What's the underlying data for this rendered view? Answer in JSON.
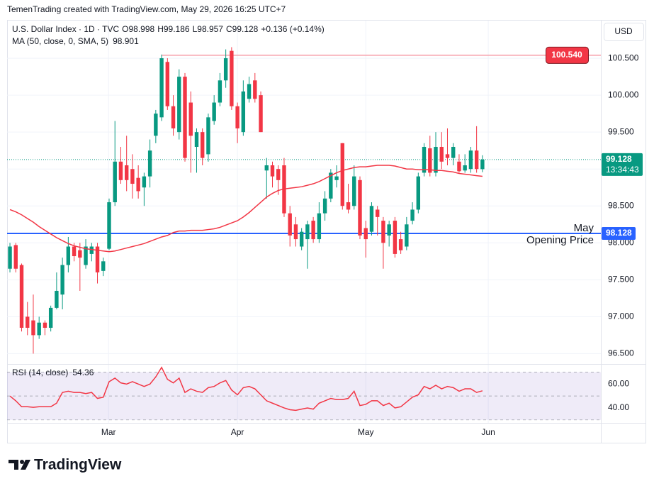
{
  "header": {
    "attribution": "TemenTrading created with TradingView.com, May 29, 2026 16:25 UTC+7",
    "currency_button": "USD",
    "brand": "TradingView"
  },
  "chart_data": [
    {
      "type": "candlestick",
      "title": "U.S. Dollar Index · 1D · TVC",
      "ohlc_letters": [
        "O",
        "H",
        "L",
        "C"
      ],
      "change": "+0.136 (+0.14%)",
      "up_color": "#089981",
      "down_color": "#f23645",
      "grid": true,
      "xlim": [
        -0.49,
        101.3
      ],
      "xticks": [
        {
          "value": 16.9,
          "label": "Mar"
        },
        {
          "value": 39.0,
          "label": "Apr"
        },
        {
          "value": 61.0,
          "label": "May"
        },
        {
          "value": 82.0,
          "label": "Jun"
        }
      ],
      "ylim": [
        96.36,
        101.01
      ],
      "yticks": [
        {
          "value": 96.5,
          "label": "96.500"
        },
        {
          "value": 97,
          "label": "97.000"
        },
        {
          "value": 97.5,
          "label": "97.500"
        },
        {
          "value": 98,
          "label": "98.000"
        },
        {
          "value": 98.5,
          "label": "98.500"
        },
        {
          "value": 99,
          "label": "99.000"
        },
        {
          "value": 99.5,
          "label": "99.500"
        },
        {
          "value": 100,
          "label": "100.000"
        },
        {
          "value": 100.5,
          "label": "100.500"
        }
      ],
      "open": [
        97.65,
        97.97,
        97.7,
        97.0,
        96.95,
        96.75,
        96.92,
        96.85,
        97.12,
        97.3,
        97.7,
        97.95,
        97.9,
        97.7,
        97.85,
        97.95,
        97.62,
        97.92,
        98.55,
        99.1,
        99.05,
        99.0,
        98.88,
        98.75,
        98.9,
        99.45,
        99.7,
        100.45,
        99.85,
        99.5,
        100.25,
        99.9,
        99.3,
        99.5,
        99.2,
        99.65,
        99.9,
        100.2,
        100.6,
        99.85,
        99.5,
        99.95,
        100.2,
        100.0,
        98.98,
        99.05,
        99.0,
        99.05,
        98.4,
        98.25,
        97.95,
        98.05,
        98.3,
        98.05,
        98.4,
        98.6,
        98.85,
        99.35,
        98.55,
        98.5,
        98.85,
        98.2,
        98.15,
        98.45,
        98.3,
        98.1,
        98.3,
        98.05,
        97.95,
        98.3,
        98.45,
        98.95,
        99.28,
        98.95,
        99.3,
        99.2,
        99.15,
        99.1,
        98.98,
        99.0,
        99.25,
        98.998
      ],
      "high": [
        98.0,
        98.0,
        97.72,
        97.2,
        97.3,
        97.0,
        96.95,
        97.15,
        97.6,
        97.8,
        98.08,
        98.0,
        98.0,
        98.05,
        98.0,
        98.0,
        97.8,
        98.6,
        99.65,
        99.3,
        99.45,
        99.2,
        99.05,
        98.95,
        99.4,
        99.8,
        100.55,
        100.5,
        100.0,
        100.35,
        100.3,
        100.05,
        99.55,
        99.55,
        99.75,
        100.0,
        100.3,
        100.62,
        100.65,
        99.9,
        100.2,
        100.25,
        100.3,
        100.05,
        99.15,
        99.1,
        99.05,
        99.15,
        98.5,
        98.35,
        98.2,
        98.3,
        98.35,
        98.55,
        98.7,
        99.0,
        99.05,
        99.35,
        98.8,
        99.05,
        98.9,
        98.3,
        98.55,
        98.5,
        98.35,
        98.3,
        98.35,
        98.15,
        98.35,
        98.55,
        98.95,
        99.35,
        99.45,
        99.5,
        99.5,
        99.55,
        99.35,
        99.2,
        99.2,
        99.3,
        99.58,
        99.186
      ],
      "low": [
        97.6,
        97.6,
        96.8,
        96.75,
        96.5,
        96.7,
        96.75,
        96.8,
        97.1,
        97.1,
        97.6,
        97.75,
        97.35,
        97.65,
        97.75,
        97.45,
        97.55,
        97.9,
        98.5,
        98.8,
        98.7,
        98.6,
        98.6,
        98.5,
        98.75,
        99.35,
        99.65,
        99.8,
        99.45,
        99.4,
        99.1,
        98.95,
        98.95,
        99.05,
        99.1,
        99.6,
        99.85,
        100.1,
        99.8,
        99.35,
        99.45,
        99.9,
        99.9,
        99.5,
        98.6,
        98.75,
        98.65,
        98.35,
        97.95,
        97.95,
        97.9,
        97.65,
        98.0,
        98.0,
        98.3,
        98.55,
        98.75,
        98.45,
        98.4,
        98.45,
        98.05,
        97.8,
        98.1,
        98.1,
        97.65,
        97.95,
        97.8,
        97.85,
        97.9,
        98.25,
        98.4,
        98.9,
        98.9,
        98.9,
        99.0,
        99.05,
        99.05,
        98.95,
        98.95,
        98.95,
        98.95,
        98.957
      ],
      "close": [
        97.95,
        97.65,
        96.85,
        96.85,
        96.75,
        96.92,
        96.85,
        97.12,
        97.35,
        97.7,
        97.95,
        97.82,
        97.8,
        97.95,
        97.95,
        97.6,
        97.75,
        98.55,
        99.1,
        98.85,
        98.85,
        98.8,
        98.7,
        98.9,
        99.25,
        99.75,
        100.5,
        99.85,
        99.55,
        100.25,
        99.15,
        99.45,
        99.5,
        99.15,
        99.7,
        99.9,
        100.2,
        100.5,
        99.85,
        99.55,
        100.05,
        100.15,
        99.95,
        99.5,
        99.05,
        98.9,
        98.85,
        98.4,
        98.1,
        98.05,
        98.15,
        98.25,
        98.05,
        98.4,
        98.6,
        98.95,
        98.9,
        98.5,
        98.45,
        98.9,
        98.1,
        98.05,
        98.5,
        98.35,
        98.0,
        98.25,
        97.85,
        97.9,
        98.25,
        98.45,
        98.9,
        99.3,
        98.95,
        99.3,
        99.1,
        99.15,
        99.3,
        98.97,
        99.05,
        99.25,
        99.0,
        99.128
      ],
      "countdown": "13:34:43",
      "series": [
        {
          "name": "MA (50, close, 0, SMA, 5)",
          "color": "#f23645",
          "values": [
            98.45,
            98.42,
            98.38,
            98.33,
            98.28,
            98.22,
            98.17,
            98.12,
            98.07,
            98.03,
            97.99,
            97.96,
            97.94,
            97.92,
            97.91,
            97.9,
            97.89,
            97.88,
            97.89,
            97.91,
            97.93,
            97.95,
            97.97,
            97.99,
            98.02,
            98.05,
            98.08,
            98.1,
            98.14,
            98.16,
            98.16,
            98.17,
            98.17,
            98.17,
            98.18,
            98.19,
            98.21,
            98.24,
            98.27,
            98.3,
            98.35,
            98.41,
            98.48,
            98.55,
            98.62,
            98.67,
            98.71,
            98.73,
            98.74,
            98.75,
            98.76,
            98.78,
            98.8,
            98.83,
            98.87,
            98.91,
            98.95,
            98.98,
            99.0,
            99.02,
            99.03,
            99.03,
            99.04,
            99.05,
            99.05,
            99.05,
            99.04,
            99.02,
            99.0,
            99.0,
            98.99,
            98.99,
            98.99,
            98.98,
            98.98,
            98.97,
            98.96,
            98.94,
            98.93,
            98.92,
            98.91,
            98.901
          ]
        }
      ],
      "hlines": [
        {
          "value": {
            "value": 98.128,
            "label": "98.128"
          },
          "text": [
            "May",
            "Opening Price"
          ],
          "color": "#2962ff"
        },
        {
          "value": {
            "value": 100.54,
            "label": "100.540"
          },
          "color": "#f23645"
        }
      ]
    },
    {
      "type": "line",
      "title": "RSI (14, close)",
      "color": "#f23645",
      "ylim": [
        27.5,
        76.25
      ],
      "yticks": [
        {
          "value": 40,
          "label": "40.00"
        },
        {
          "value": 60,
          "label": "60.00"
        }
      ],
      "band": [
        30,
        70
      ],
      "reference_lines": [
        70,
        50,
        30
      ],
      "values": [
        50,
        46,
        41,
        41,
        40.5,
        41,
        41,
        41,
        44,
        53,
        54,
        53,
        53,
        52,
        53,
        48,
        49,
        62,
        65,
        61,
        60,
        62,
        60,
        58,
        60,
        66,
        74,
        64,
        61,
        65,
        53,
        56,
        54,
        53,
        57,
        58,
        61,
        63,
        55,
        51,
        57,
        58,
        56,
        51,
        46,
        44,
        42,
        40,
        38.5,
        38,
        39,
        40,
        39,
        44,
        46,
        48,
        47,
        47,
        48,
        54,
        42,
        43,
        46,
        46,
        42,
        44,
        40,
        41,
        45,
        49,
        51,
        58,
        56,
        59,
        56,
        58,
        57,
        54,
        56,
        56,
        53,
        54.36
      ]
    }
  ]
}
